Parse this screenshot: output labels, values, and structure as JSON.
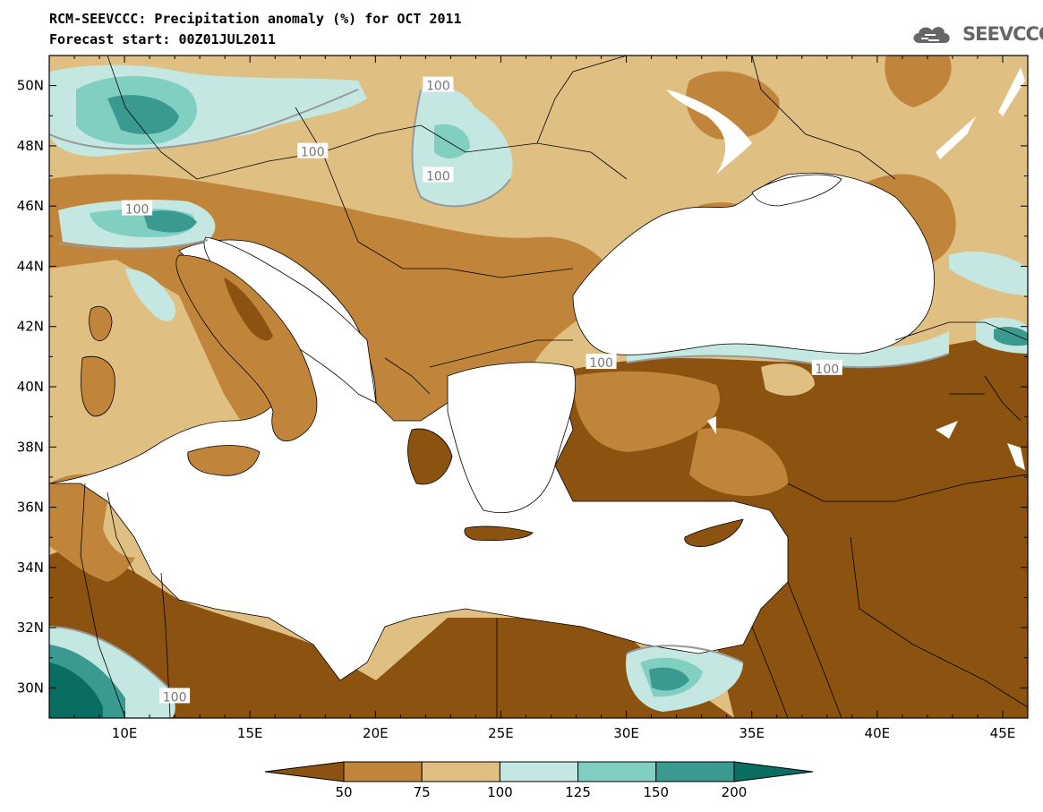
{
  "title_line1": "RCM-SEEVCCC: Precipitation anomaly (%) for OCT 2011",
  "title_line2": "Forecast start: 00Z01JUL2011",
  "logo_text": "SEEVCCC",
  "map": {
    "lon_range": [
      7,
      46
    ],
    "lat_range": [
      29,
      51
    ],
    "x_ticks": [
      {
        "lon": 10,
        "label": "10E"
      },
      {
        "lon": 15,
        "label": "15E"
      },
      {
        "lon": 20,
        "label": "20E"
      },
      {
        "lon": 25,
        "label": "25E"
      },
      {
        "lon": 30,
        "label": "30E"
      },
      {
        "lon": 35,
        "label": "35E"
      },
      {
        "lon": 40,
        "label": "40E"
      },
      {
        "lon": 45,
        "label": "45E"
      }
    ],
    "y_ticks": [
      {
        "lat": 30,
        "label": "30N"
      },
      {
        "lat": 32,
        "label": "32N"
      },
      {
        "lat": 34,
        "label": "34N"
      },
      {
        "lat": 36,
        "label": "36N"
      },
      {
        "lat": 38,
        "label": "38N"
      },
      {
        "lat": 40,
        "label": "40N"
      },
      {
        "lat": 42,
        "label": "42N"
      },
      {
        "lat": 44,
        "label": "44N"
      },
      {
        "lat": 46,
        "label": "46N"
      },
      {
        "lat": 48,
        "label": "48N"
      },
      {
        "lat": 50,
        "label": "50N"
      }
    ],
    "contour_labels": [
      {
        "lon": 22.5,
        "lat": 50.0,
        "text": "100"
      },
      {
        "lon": 17.5,
        "lat": 47.8,
        "text": "100"
      },
      {
        "lon": 22.5,
        "lat": 47.0,
        "text": "100"
      },
      {
        "lon": 10.5,
        "lat": 45.9,
        "text": "100"
      },
      {
        "lon": 29.0,
        "lat": 40.8,
        "text": "100"
      },
      {
        "lon": 38.0,
        "lat": 40.6,
        "text": "100"
      },
      {
        "lon": 12.0,
        "lat": 29.7,
        "text": "100"
      }
    ]
  },
  "colorbar": {
    "labels": [
      "50",
      "75",
      "100",
      "125",
      "150",
      "200"
    ],
    "colors": [
      "#8b5210",
      "#c0853a",
      "#dfbf82",
      "#c4e8e1",
      "#80cfc1",
      "#3a9a8f",
      "#0a6d62"
    ]
  },
  "colors": {
    "sea": "#ffffff",
    "very_dry": "#8b5210",
    "dry": "#c0853a",
    "moderate_dry": "#dfbf82",
    "wet": "#c4e8e1",
    "wetter": "#80cfc1",
    "very_wet": "#3a9a8f",
    "extreme_wet": "#0a6d62"
  }
}
